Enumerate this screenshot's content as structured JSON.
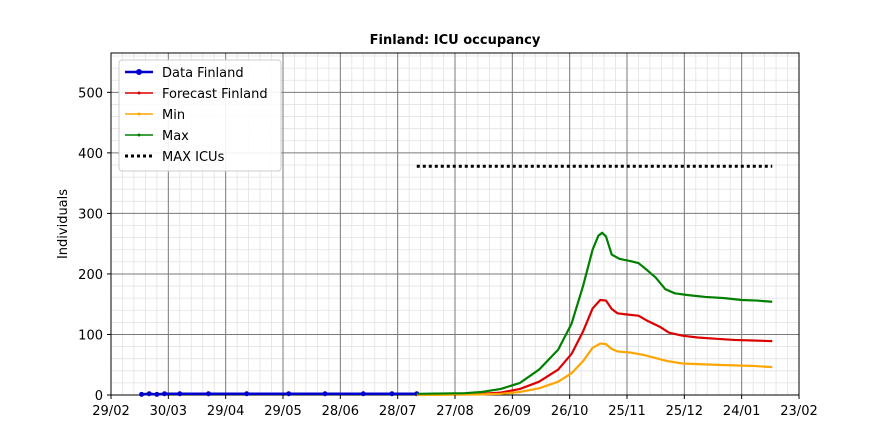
{
  "chart_data": {
    "type": "line",
    "title": "Finland: ICU occupancy",
    "xlabel": "",
    "ylabel": "Individuals",
    "x_unit": "date",
    "x_range": [
      "2020-02-29",
      "2021-02-23"
    ],
    "ylim": [
      0,
      565
    ],
    "x_ticks": [
      {
        "date": "2020-02-29",
        "label": "29/02"
      },
      {
        "date": "2020-03-30",
        "label": "30/03"
      },
      {
        "date": "2020-04-29",
        "label": "29/04"
      },
      {
        "date": "2020-05-29",
        "label": "29/05"
      },
      {
        "date": "2020-06-28",
        "label": "28/06"
      },
      {
        "date": "2020-07-28",
        "label": "28/07"
      },
      {
        "date": "2020-08-27",
        "label": "27/08"
      },
      {
        "date": "2020-09-26",
        "label": "26/09"
      },
      {
        "date": "2020-10-26",
        "label": "26/10"
      },
      {
        "date": "2020-11-25",
        "label": "25/11"
      },
      {
        "date": "2020-12-25",
        "label": "25/12"
      },
      {
        "date": "2021-01-24",
        "label": "24/01"
      },
      {
        "date": "2021-02-23",
        "label": "23/02"
      }
    ],
    "y_ticks": [
      0,
      100,
      200,
      300,
      400,
      500
    ],
    "grid": true,
    "minor_grid": true,
    "legend_position": "top-left",
    "series": [
      {
        "name": "Data Finland",
        "color": "#0000cc",
        "style": "line-marker",
        "points": [
          [
            "2020-03-16",
            1
          ],
          [
            "2020-03-20",
            2
          ],
          [
            "2020-03-24",
            1
          ],
          [
            "2020-03-28",
            2
          ],
          [
            "2020-04-05",
            2
          ],
          [
            "2020-04-20",
            2
          ],
          [
            "2020-05-10",
            2
          ],
          [
            "2020-06-01",
            2
          ],
          [
            "2020-06-20",
            2
          ],
          [
            "2020-07-10",
            2
          ],
          [
            "2020-07-25",
            2
          ],
          [
            "2020-08-07",
            2
          ]
        ]
      },
      {
        "name": "Forecast Finland",
        "color": "#dd0000",
        "style": "line",
        "points": [
          [
            "2020-08-07",
            1
          ],
          [
            "2020-09-01",
            1
          ],
          [
            "2020-09-10",
            2
          ],
          [
            "2020-09-20",
            4
          ],
          [
            "2020-09-30",
            10
          ],
          [
            "2020-10-10",
            22
          ],
          [
            "2020-10-20",
            42
          ],
          [
            "2020-10-27",
            68
          ],
          [
            "2020-11-02",
            105
          ],
          [
            "2020-11-07",
            143
          ],
          [
            "2020-11-11",
            157
          ],
          [
            "2020-11-14",
            156
          ],
          [
            "2020-11-17",
            142
          ],
          [
            "2020-11-20",
            135
          ],
          [
            "2020-11-25",
            133
          ],
          [
            "2020-12-01",
            131
          ],
          [
            "2020-12-06",
            122
          ],
          [
            "2020-12-12",
            113
          ],
          [
            "2020-12-17",
            103
          ],
          [
            "2020-12-24",
            98
          ],
          [
            "2021-01-01",
            95
          ],
          [
            "2021-01-10",
            93
          ],
          [
            "2021-01-20",
            91
          ],
          [
            "2021-01-30",
            90
          ],
          [
            "2021-02-09",
            89
          ]
        ]
      },
      {
        "name": "Min",
        "color": "#ffa500",
        "style": "line",
        "points": [
          [
            "2020-08-07",
            0
          ],
          [
            "2020-09-10",
            1
          ],
          [
            "2020-09-20",
            2
          ],
          [
            "2020-09-30",
            5
          ],
          [
            "2020-10-10",
            11
          ],
          [
            "2020-10-20",
            22
          ],
          [
            "2020-10-27",
            36
          ],
          [
            "2020-11-02",
            56
          ],
          [
            "2020-11-07",
            78
          ],
          [
            "2020-11-11",
            85
          ],
          [
            "2020-11-14",
            84
          ],
          [
            "2020-11-17",
            76
          ],
          [
            "2020-11-20",
            72
          ],
          [
            "2020-11-27",
            70
          ],
          [
            "2020-12-04",
            66
          ],
          [
            "2020-12-10",
            61
          ],
          [
            "2020-12-16",
            56
          ],
          [
            "2020-12-24",
            52
          ],
          [
            "2021-01-01",
            51
          ],
          [
            "2021-01-10",
            50
          ],
          [
            "2021-01-20",
            49
          ],
          [
            "2021-01-30",
            48
          ],
          [
            "2021-02-09",
            46
          ]
        ]
      },
      {
        "name": "Max",
        "color": "#008000",
        "style": "line",
        "points": [
          [
            "2020-08-07",
            2
          ],
          [
            "2020-09-01",
            3
          ],
          [
            "2020-09-10",
            5
          ],
          [
            "2020-09-20",
            10
          ],
          [
            "2020-09-30",
            20
          ],
          [
            "2020-10-10",
            42
          ],
          [
            "2020-10-20",
            75
          ],
          [
            "2020-10-27",
            118
          ],
          [
            "2020-11-02",
            180
          ],
          [
            "2020-11-07",
            240
          ],
          [
            "2020-11-10",
            263
          ],
          [
            "2020-11-12",
            268
          ],
          [
            "2020-11-14",
            262
          ],
          [
            "2020-11-17",
            232
          ],
          [
            "2020-11-21",
            225
          ],
          [
            "2020-11-27",
            221
          ],
          [
            "2020-12-01",
            218
          ],
          [
            "2020-12-06",
            205
          ],
          [
            "2020-12-10",
            194
          ],
          [
            "2020-12-15",
            175
          ],
          [
            "2020-12-20",
            168
          ],
          [
            "2020-12-27",
            165
          ],
          [
            "2021-01-05",
            162
          ],
          [
            "2021-01-15",
            160
          ],
          [
            "2021-01-24",
            157
          ],
          [
            "2021-02-01",
            156
          ],
          [
            "2021-02-09",
            154
          ]
        ]
      },
      {
        "name": "MAX ICUs",
        "color": "#000000",
        "style": "dotted",
        "points": [
          [
            "2020-08-07",
            378
          ],
          [
            "2021-02-09",
            378
          ]
        ]
      }
    ]
  }
}
